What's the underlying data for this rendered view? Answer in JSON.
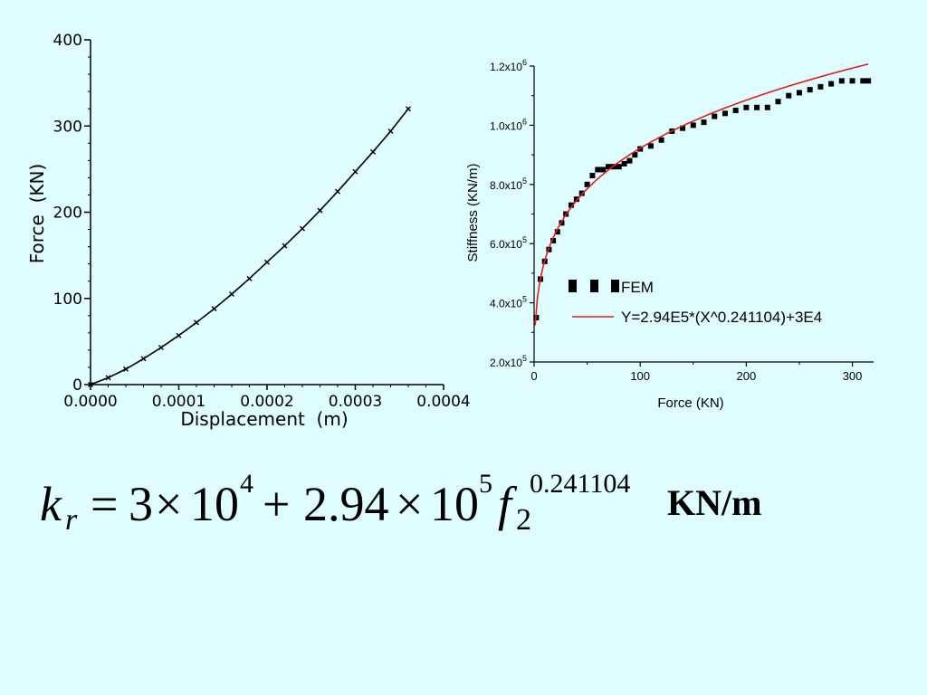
{
  "chart_data": [
    {
      "type": "scatter",
      "xlabel": "Displacement  (m)",
      "ylabel": "Force  (KN)",
      "xlim": [
        0,
        0.0004
      ],
      "ylim": [
        0,
        400
      ],
      "xticks": [
        "0.0000",
        "0.0001",
        "0.0002",
        "0.0003",
        "0.0004"
      ],
      "yticks": [
        "0",
        "100",
        "200",
        "300",
        "400"
      ],
      "grid": false,
      "series": [
        {
          "x": [
            0,
            2e-05,
            4e-05,
            6e-05,
            8e-05,
            0.0001,
            0.00012,
            0.00014,
            0.00016,
            0.00018,
            0.0002,
            0.00022,
            0.00024,
            0.00026,
            0.00028,
            0.0003,
            0.00032,
            0.00034,
            0.00036
          ],
          "y": [
            0,
            8,
            18,
            30,
            43,
            57,
            72,
            88,
            105,
            123,
            142,
            161,
            181,
            202,
            224,
            247,
            270,
            294,
            320
          ]
        }
      ]
    },
    {
      "type": "scatter",
      "xlabel": "Force (KN)",
      "ylabel": "Stiffness (KN/m)",
      "xlim": [
        0,
        320
      ],
      "ylim": [
        200000,
        1200000
      ],
      "xticks": [
        "0",
        "100",
        "200",
        "300"
      ],
      "yticks": [
        {
          "base": "2.0x10",
          "exp": "5"
        },
        {
          "base": "4.0x10",
          "exp": "5"
        },
        {
          "base": "6.0x10",
          "exp": "5"
        },
        {
          "base": "8.0x10",
          "exp": "5"
        },
        {
          "base": "1.0x10",
          "exp": "6"
        },
        {
          "base": "1.2x10",
          "exp": "6"
        }
      ],
      "legend_position": "center",
      "colors": {
        "fem": "#000000",
        "fit": "#e0201b"
      },
      "series": [
        {
          "name": "FEM",
          "x": [
            2,
            6,
            10,
            14,
            18,
            22,
            26,
            30,
            35,
            40,
            45,
            50,
            55,
            60,
            65,
            70,
            75,
            80,
            85,
            90,
            95,
            100,
            110,
            120,
            130,
            140,
            150,
            160,
            170,
            180,
            190,
            200,
            210,
            220,
            230,
            240,
            250,
            260,
            270,
            280,
            290,
            300,
            310,
            315
          ],
          "y": [
            350000,
            480000,
            540000,
            580000,
            610000,
            640000,
            670000,
            700000,
            730000,
            750000,
            770000,
            800000,
            830000,
            850000,
            850000,
            860000,
            860000,
            860000,
            870000,
            880000,
            900000,
            920000,
            930000,
            950000,
            980000,
            990000,
            1000000,
            1010000,
            1030000,
            1040000,
            1050000,
            1060000,
            1060000,
            1060000,
            1080000,
            1100000,
            1110000,
            1120000,
            1130000,
            1140000,
            1150000,
            1150000,
            1150000,
            1150000
          ]
        },
        {
          "name": "Y=2.94E5*(X^0.241104)+3E4",
          "function": {
            "a": 294000,
            "b": 0.241104,
            "c": 30000
          },
          "x_range": [
            1,
            315
          ]
        }
      ]
    }
  ],
  "formula": {
    "k": "k",
    "r": "r",
    "equals": "=",
    "three": "3",
    "times1": "×",
    "ten1": "10",
    "exp1": "4",
    "plus": "+",
    "coef": "2.94",
    "times2": "×",
    "ten2": "10",
    "exp2": "5",
    "f": "f",
    "two": "2",
    "exp3": "0.241104",
    "unit": "KN/m"
  }
}
